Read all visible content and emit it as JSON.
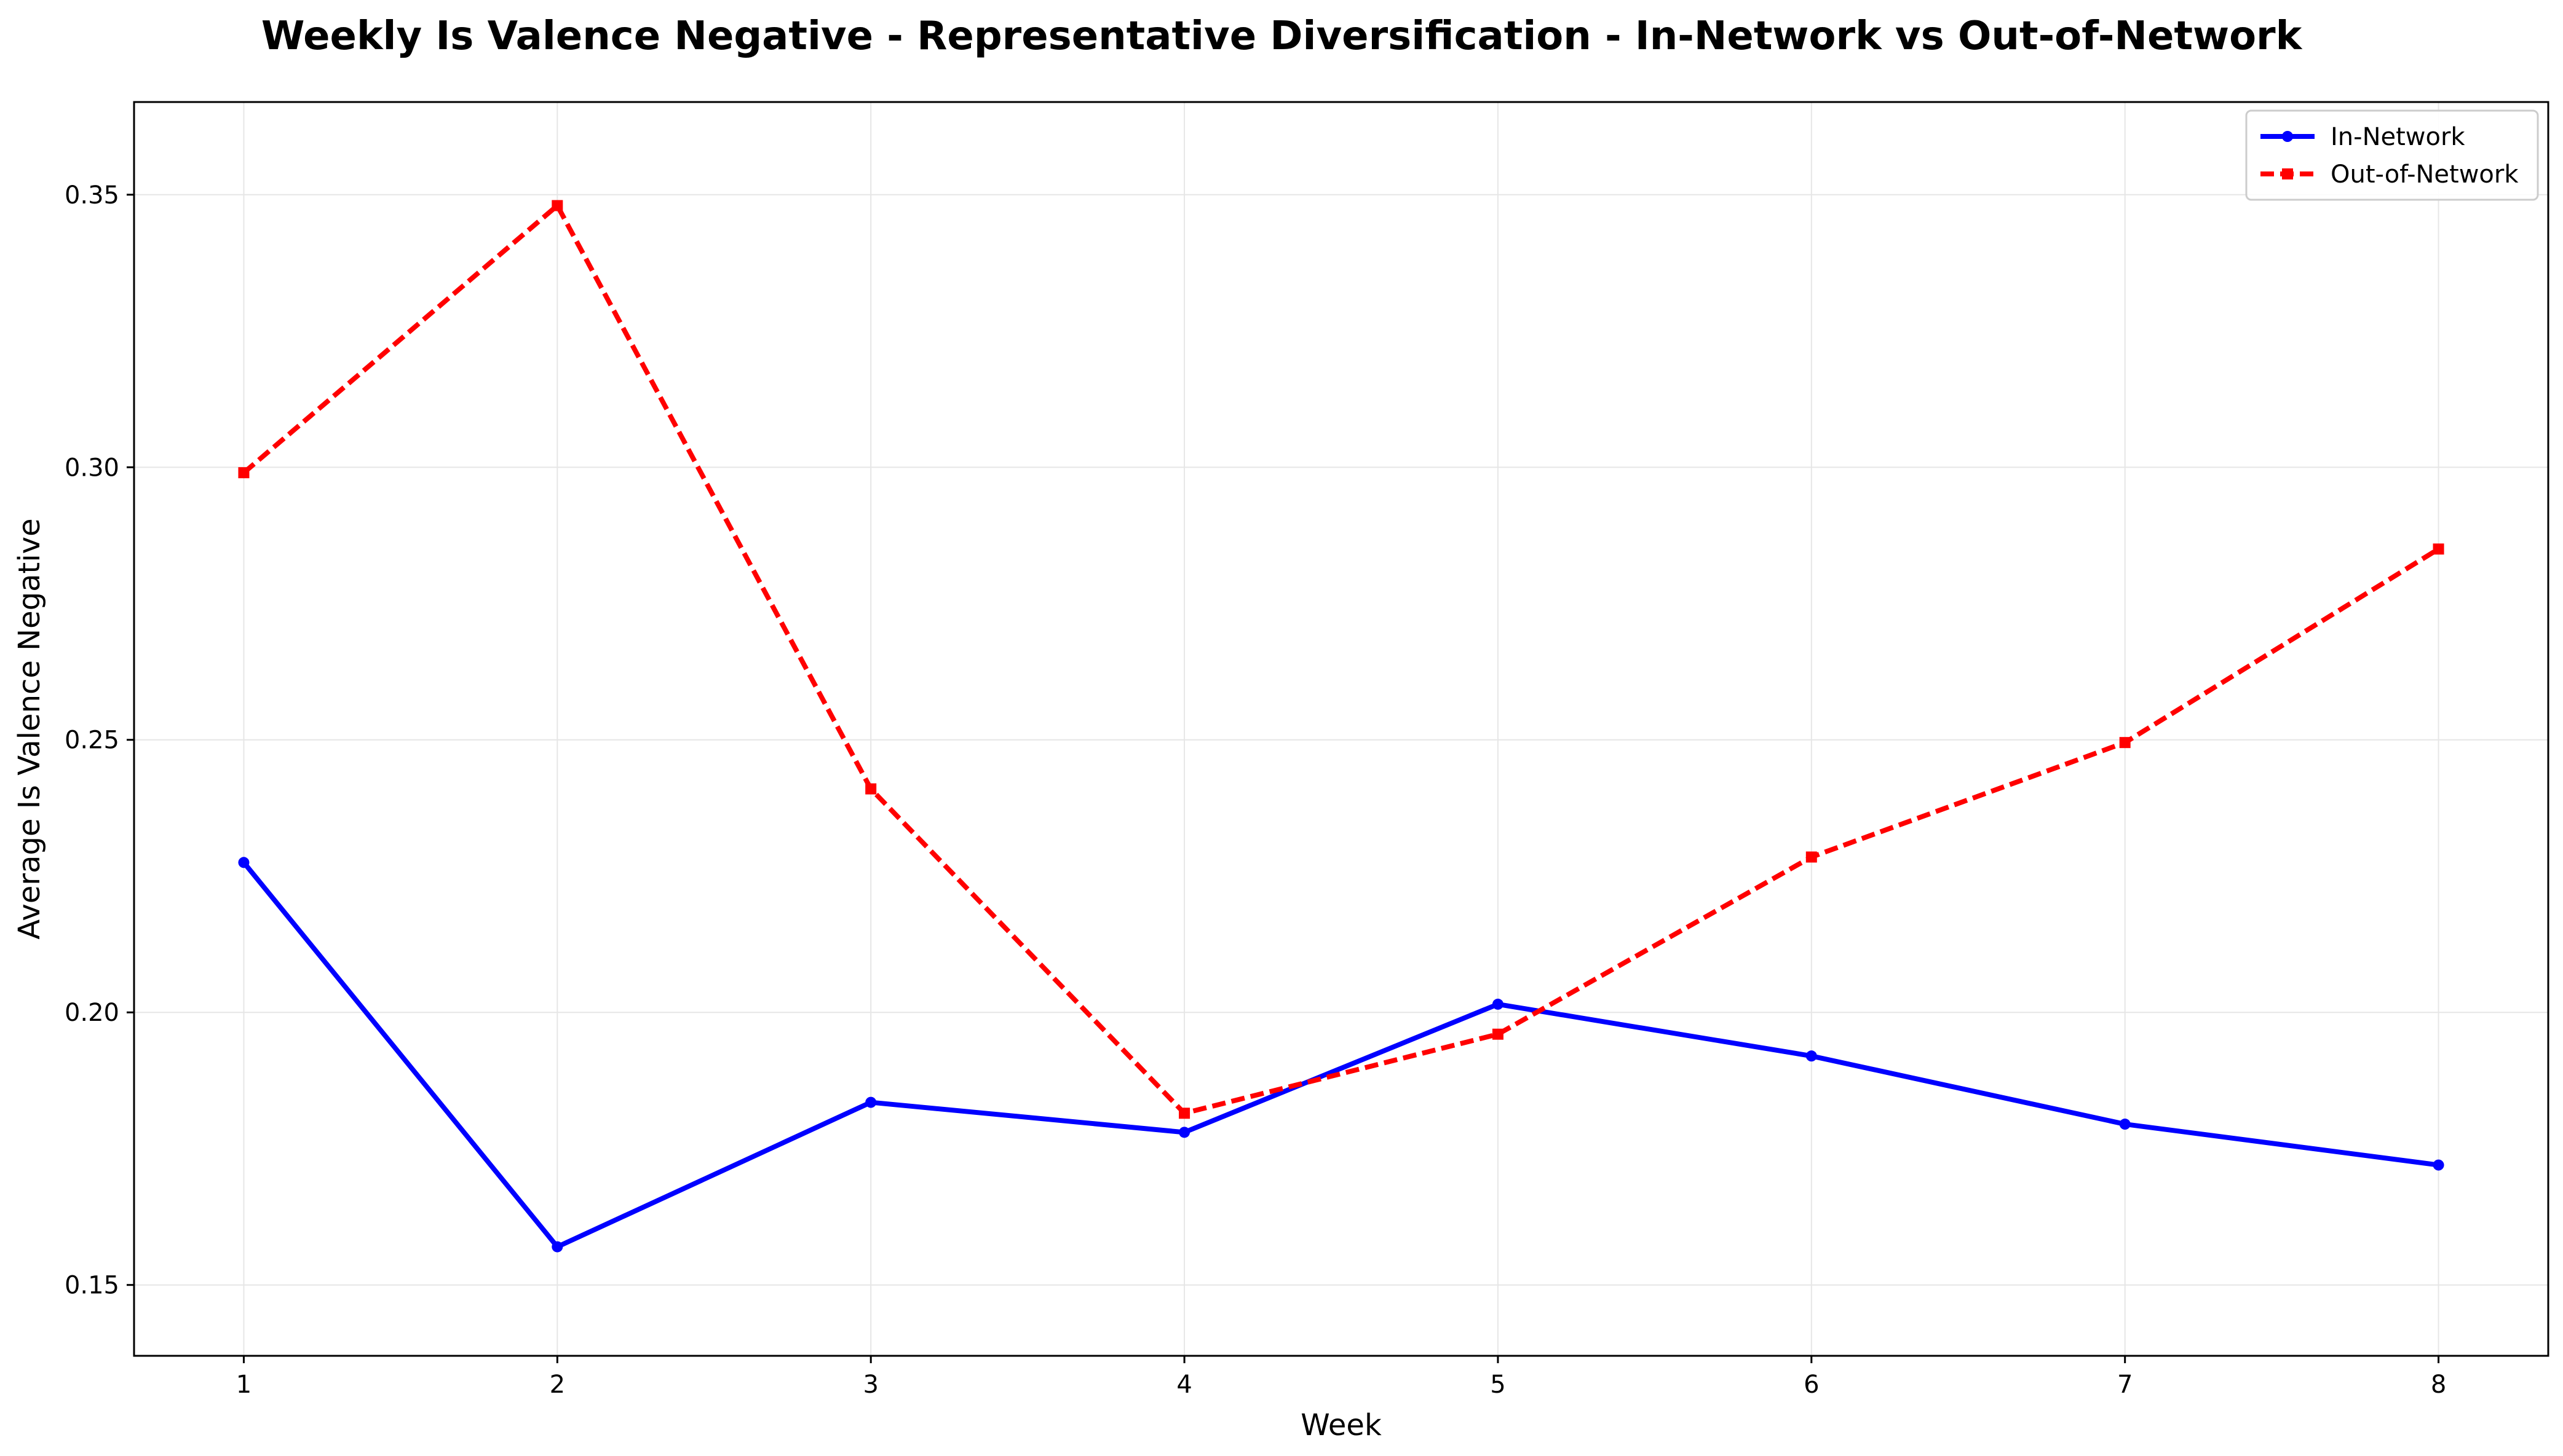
{
  "chart_data": {
    "type": "line",
    "title": "Weekly Is Valence Negative - Representative Diversification - In-Network vs Out-of-Network",
    "xlabel": "Week",
    "ylabel": "Average Is Valence Negative",
    "x": [
      1,
      2,
      3,
      4,
      5,
      6,
      7,
      8
    ],
    "xlim": [
      0.65,
      8.35
    ],
    "ylim": [
      0.137,
      0.367
    ],
    "xticks": [
      1,
      2,
      3,
      4,
      5,
      6,
      7,
      8
    ],
    "yticks": [
      0.15,
      0.2,
      0.25,
      0.3,
      0.35
    ],
    "ytick_labels": [
      "0.15",
      "0.20",
      "0.25",
      "0.30",
      "0.35"
    ],
    "grid": true,
    "legend_position": "top-right",
    "series": [
      {
        "name": "In-Network",
        "color": "#0000ff",
        "line_style": "solid",
        "marker": "circle",
        "values": [
          0.2275,
          0.157,
          0.1835,
          0.178,
          0.2015,
          0.192,
          0.1795,
          0.172
        ]
      },
      {
        "name": "Out-of-Network",
        "color": "#ff0000",
        "line_style": "dashed",
        "marker": "square",
        "values": [
          0.299,
          0.348,
          0.241,
          0.1815,
          0.196,
          0.2285,
          0.2495,
          0.285
        ]
      }
    ]
  }
}
